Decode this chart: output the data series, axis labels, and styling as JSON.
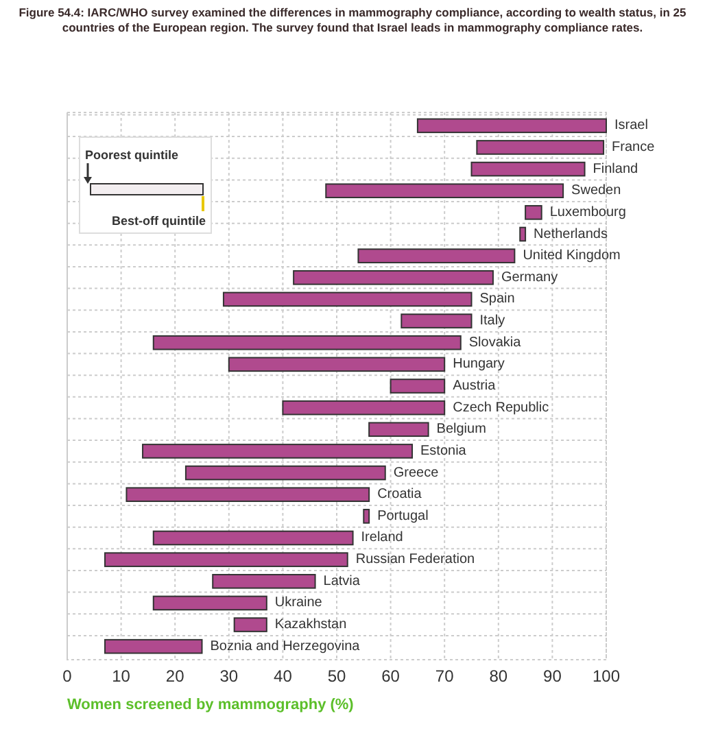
{
  "chart_data": {
    "type": "bar",
    "orientation": "horizontal",
    "title": "Figure 54.4: IARC/WHO survey examined the differences in mammography compliance, according to wealth status, in 25 countries of the European region. The survey found that Israel leads in mammography compliance rates.",
    "xlabel": "Women screened by mammography (%)",
    "categories": [
      "Israel",
      "France",
      "Finland",
      "Sweden",
      "Luxembourg",
      "Netherlands",
      "United Kingdom",
      "Germany",
      "Spain",
      "Italy",
      "Slovakia",
      "Hungary",
      "Austria",
      "Czech Republic",
      "Belgium",
      "Estonia",
      "Greece",
      "Croatia",
      "Portugal",
      "Ireland",
      "Russian Federation",
      "Latvia",
      "Ukraine",
      "Kazakhstan",
      "Boznia and Herzegovina"
    ],
    "base": [
      65,
      76,
      75,
      48,
      85,
      84,
      54,
      42,
      29,
      62,
      16,
      30,
      60,
      40,
      56,
      14,
      22,
      11,
      55,
      16,
      7,
      27,
      16,
      31,
      7
    ],
    "values": [
      35,
      23.5,
      21,
      44,
      3,
      1,
      29,
      37,
      46,
      13,
      57,
      40,
      10,
      30,
      11,
      50,
      37,
      45,
      1,
      37,
      45,
      19,
      21,
      6,
      18
    ],
    "color": "#b04a8e",
    "xlim": [
      0,
      100
    ],
    "xticks": [
      0,
      10,
      20,
      30,
      40,
      50,
      60,
      70,
      80,
      90,
      100
    ],
    "grid": true,
    "annotations": [
      "Poorest quintile",
      "Best-off quintile"
    ]
  }
}
